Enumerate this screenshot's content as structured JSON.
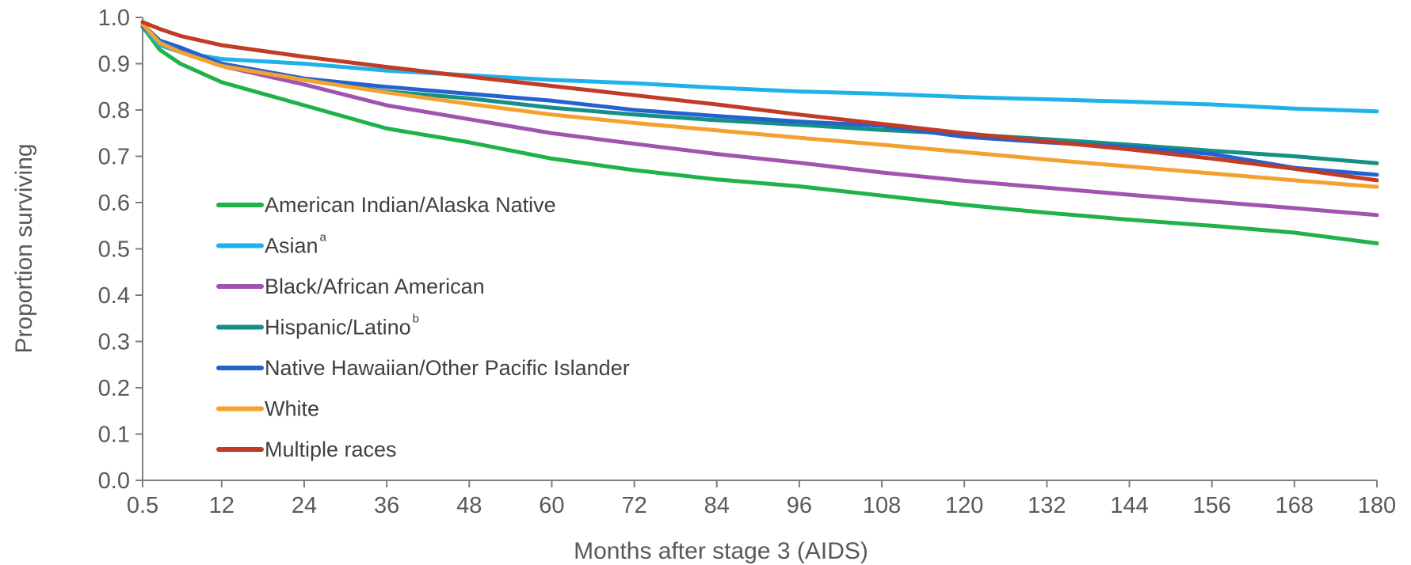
{
  "chart_data": {
    "type": "line",
    "title": "",
    "xlabel": "Months after stage 3 (AIDS)",
    "ylabel": "Proportion surviving",
    "xlim": [
      0.5,
      180
    ],
    "ylim": [
      0.0,
      1.0
    ],
    "x_ticks": [
      0.5,
      12,
      24,
      36,
      48,
      60,
      72,
      84,
      96,
      108,
      120,
      132,
      144,
      156,
      168,
      180
    ],
    "x_tick_labels": [
      "0.5",
      "12",
      "24",
      "36",
      "48",
      "60",
      "72",
      "84",
      "96",
      "108",
      "120",
      "132",
      "144",
      "156",
      "168",
      "180"
    ],
    "y_ticks": [
      0.0,
      0.1,
      0.2,
      0.3,
      0.4,
      0.5,
      0.6,
      0.7,
      0.8,
      0.9,
      1.0
    ],
    "y_tick_labels": [
      "0.0",
      "0.1",
      "0.2",
      "0.3",
      "0.4",
      "0.5",
      "0.6",
      "0.7",
      "0.8",
      "0.9",
      "1.0"
    ],
    "grid": false,
    "legend_position": "left-center",
    "x": [
      0.5,
      3,
      6,
      12,
      24,
      36,
      48,
      60,
      72,
      84,
      96,
      108,
      120,
      132,
      144,
      156,
      168,
      180
    ],
    "series": [
      {
        "name": "American Indian/Alaska Native",
        "sup": "",
        "color": "#1fb24a",
        "values": [
          0.98,
          0.93,
          0.9,
          0.86,
          0.81,
          0.76,
          0.73,
          0.695,
          0.67,
          0.65,
          0.635,
          0.615,
          0.595,
          0.578,
          0.563,
          0.55,
          0.535,
          0.512
        ]
      },
      {
        "name": "Asian",
        "sup": "a",
        "color": "#1fb2ea",
        "values": [
          0.98,
          0.94,
          0.925,
          0.91,
          0.9,
          0.885,
          0.875,
          0.865,
          0.858,
          0.848,
          0.84,
          0.835,
          0.828,
          0.823,
          0.818,
          0.812,
          0.803,
          0.797
        ]
      },
      {
        "name": "Black/African American",
        "sup": "",
        "color": "#a054b0",
        "values": [
          0.985,
          0.945,
          0.925,
          0.895,
          0.855,
          0.81,
          0.78,
          0.75,
          0.727,
          0.705,
          0.686,
          0.665,
          0.647,
          0.632,
          0.617,
          0.602,
          0.588,
          0.573
        ]
      },
      {
        "name": "Hispanic/Latino",
        "sup": "b",
        "color": "#149085",
        "values": [
          0.985,
          0.95,
          0.93,
          0.9,
          0.865,
          0.84,
          0.825,
          0.805,
          0.79,
          0.778,
          0.768,
          0.757,
          0.748,
          0.737,
          0.725,
          0.712,
          0.7,
          0.685
        ]
      },
      {
        "name": "Native Hawaiian/Other Pacific Islander",
        "sup": "",
        "color": "#2462d0",
        "values": [
          0.98,
          0.95,
          0.935,
          0.9,
          0.868,
          0.85,
          0.835,
          0.82,
          0.8,
          0.787,
          0.775,
          0.766,
          0.742,
          0.73,
          0.72,
          0.705,
          0.675,
          0.66
        ]
      },
      {
        "name": "White",
        "sup": "",
        "color": "#f3a230",
        "values": [
          0.985,
          0.945,
          0.925,
          0.895,
          0.865,
          0.838,
          0.813,
          0.79,
          0.772,
          0.756,
          0.74,
          0.725,
          0.709,
          0.693,
          0.678,
          0.663,
          0.648,
          0.634
        ]
      },
      {
        "name": "Multiple races",
        "sup": "",
        "color": "#c23b25",
        "values": [
          0.99,
          0.975,
          0.96,
          0.94,
          0.915,
          0.893,
          0.872,
          0.852,
          0.832,
          0.812,
          0.79,
          0.77,
          0.75,
          0.732,
          0.715,
          0.695,
          0.673,
          0.648
        ]
      }
    ]
  }
}
